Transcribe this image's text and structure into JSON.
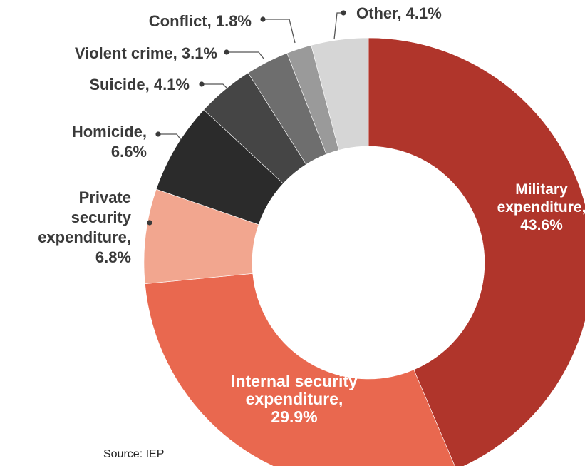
{
  "chart_data": {
    "type": "pie",
    "donut": true,
    "start_angle_deg": 0,
    "direction": "clockwise",
    "slices": [
      {
        "label": [
          "Military",
          "expenditure,",
          "43.6%"
        ],
        "value": 43.6,
        "color": "#b0352b"
      },
      {
        "label": [
          "Internal security",
          "expenditure,",
          "29.9%"
        ],
        "value": 29.9,
        "color": "#e9684f"
      },
      {
        "label": [
          "Private",
          "security",
          "expenditure,",
          "6.8%"
        ],
        "value": 6.8,
        "color": "#f2a68f"
      },
      {
        "label": [
          "Homicide,",
          "6.6%"
        ],
        "value": 6.6,
        "color": "#2b2b2b"
      },
      {
        "label": [
          "Suicide, 4.1%"
        ],
        "value": 4.1,
        "color": "#454545"
      },
      {
        "label": [
          "Violent crime, 3.1%"
        ],
        "value": 3.1,
        "color": "#6e6e6e"
      },
      {
        "label": [
          "Conflict, 1.8%"
        ],
        "value": 1.8,
        "color": "#9a9a9a"
      },
      {
        "label": [
          "Other, 4.1%"
        ],
        "value": 4.1,
        "color": "#d6d6d6"
      }
    ]
  },
  "source": "Source: IEP"
}
